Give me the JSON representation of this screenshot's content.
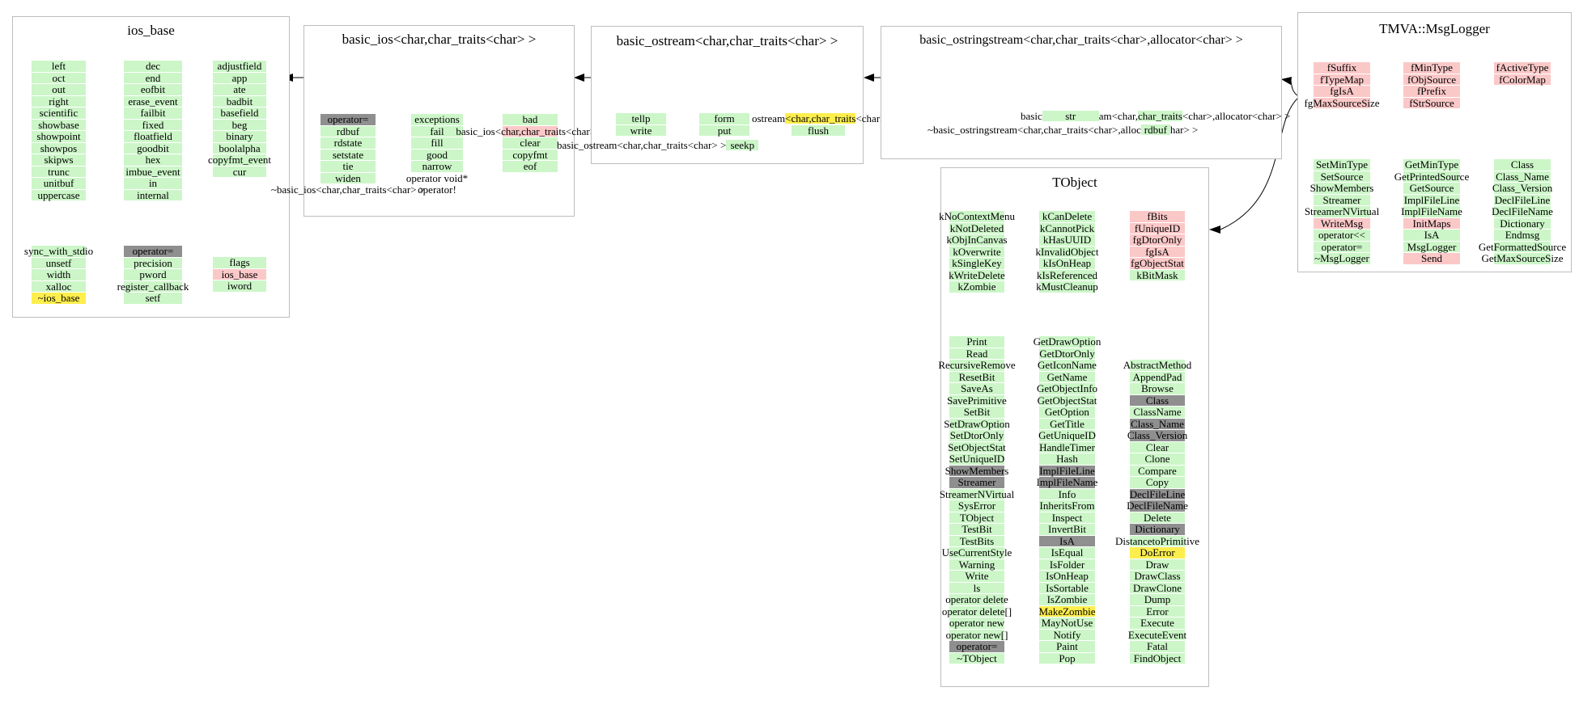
{
  "colors": {
    "green": "#ccf6c8",
    "pink": "#fbc8c8",
    "yellow": "#fdee4d",
    "gray": "#8f8f8f",
    "border": "#bdbdbd",
    "arrow": "#000000",
    "background": "#ffffff"
  },
  "classes": [
    {
      "title": "ios_base",
      "columns": [
        [
          [
            "left",
            "g"
          ],
          [
            "oct",
            "g"
          ],
          [
            "out",
            "g"
          ],
          [
            "right",
            "g"
          ],
          [
            "scientific",
            "g"
          ],
          [
            "showbase",
            "g"
          ],
          [
            "showpoint",
            "g"
          ],
          [
            "showpos",
            "g"
          ],
          [
            "skipws",
            "g"
          ],
          [
            "trunc",
            "g"
          ],
          [
            "unitbuf",
            "g"
          ],
          [
            "uppercase",
            "g"
          ]
        ],
        [
          [
            "dec",
            "g"
          ],
          [
            "end",
            "g"
          ],
          [
            "eofbit",
            "g"
          ],
          [
            "erase_event",
            "g"
          ],
          [
            "failbit",
            "g"
          ],
          [
            "fixed",
            "g"
          ],
          [
            "floatfield",
            "g"
          ],
          [
            "goodbit",
            "g"
          ],
          [
            "hex",
            "g"
          ],
          [
            "imbue_event",
            "g"
          ],
          [
            "in",
            "g"
          ],
          [
            "internal",
            "g"
          ]
        ],
        [
          [
            "adjustfield",
            "g"
          ],
          [
            "app",
            "g"
          ],
          [
            "ate",
            "g"
          ],
          [
            "badbit",
            "g"
          ],
          [
            "basefield",
            "g"
          ],
          [
            "beg",
            "g"
          ],
          [
            "binary",
            "g"
          ],
          [
            "boolalpha",
            "g"
          ],
          [
            "copyfmt_event",
            "g"
          ],
          [
            "cur",
            "g"
          ]
        ],
        [
          [
            "sync_with_stdio",
            "g"
          ],
          [
            "unsetf",
            "g"
          ],
          [
            "width",
            "g"
          ],
          [
            "xalloc",
            "g"
          ],
          [
            "~ios_base",
            "y"
          ]
        ],
        [
          [
            "operator=",
            "gr"
          ],
          [
            "precision",
            "g"
          ],
          [
            "pword",
            "g"
          ],
          [
            "register_callback",
            "g"
          ],
          [
            "setf",
            "g"
          ]
        ],
        [
          [
            "flags",
            "g"
          ],
          [
            "ios_base",
            "p"
          ],
          [
            "iword",
            "g"
          ]
        ]
      ],
      "loose": []
    },
    {
      "title": "basic_ios<char,char_traits<char> >",
      "columns": [
        [
          [
            "operator=",
            "gr"
          ],
          [
            "rdbuf",
            "g"
          ],
          [
            "rdstate",
            "g"
          ],
          [
            "setstate",
            "g"
          ],
          [
            "tie",
            "g"
          ],
          [
            "widen",
            "g"
          ],
          [
            "~basic_ios<char,char_traits<char> >",
            "n"
          ]
        ],
        [
          [
            "exceptions",
            "g"
          ],
          [
            "fail",
            "g"
          ],
          [
            "fill",
            "g"
          ],
          [
            "good",
            "g"
          ],
          [
            "narrow",
            "g"
          ],
          [
            "operator void*",
            "n"
          ],
          [
            "operator!",
            "n"
          ]
        ],
        [
          [
            "bad",
            "g"
          ],
          [
            "basic_ios<char,char_traits<char> >",
            "p"
          ],
          [
            "clear",
            "g"
          ],
          [
            "copyfmt",
            "g"
          ],
          [
            "eof",
            "g"
          ]
        ]
      ],
      "loose": []
    },
    {
      "title": "basic_ostream<char,char_traits<char> >",
      "columns": [
        [
          [
            "tellp",
            "g"
          ],
          [
            "write",
            "g"
          ]
        ],
        [
          [
            "form",
            "g"
          ],
          [
            "put",
            "g"
          ]
        ]
      ],
      "loose": [
        {
          "parts": [
            [
              "ostream"
            ],
            [
              "<char,char_traits",
              "y"
            ],
            [
              "<char> >"
            ]
          ]
        },
        {
          "parts": [
            [
              "flush",
              "g",
              66
            ]
          ]
        },
        {
          "parts": [
            [
              "basic_ostream<char,char_traits<char> >"
            ],
            [
              "seekp",
              "g",
              40
            ]
          ]
        }
      ]
    },
    {
      "title": "basic_ostringstream<char,char_traits<char>,allocator<char> >",
      "columns": [],
      "loose": [
        {
          "parts": [
            [
              "basic"
            ],
            [
              "str",
              "g",
              70
            ],
            [
              "am<char,"
            ],
            [
              "char_traits",
              "g"
            ],
            [
              "<char>,allocator<char> >"
            ]
          ]
        },
        {
          "parts": [
            [
              "~basic_ostringstream<char,char_traits<char>,alloc"
            ],
            [
              "rdbuf",
              "g",
              36
            ],
            [
              "har> >"
            ]
          ]
        }
      ]
    },
    {
      "title": "TMVA::MsgLogger",
      "columns": [
        [
          [
            "fSuffix",
            "p"
          ],
          [
            "fTypeMap",
            "p"
          ],
          [
            "fgIsA",
            "p"
          ],
          [
            "fgMaxSourceSize",
            "p"
          ]
        ],
        [
          [
            "fMinType",
            "p"
          ],
          [
            "fObjSource",
            "p"
          ],
          [
            "fPrefix",
            "p"
          ],
          [
            "fStrSource",
            "p"
          ]
        ],
        [
          [
            "fActiveType",
            "p"
          ],
          [
            "fColorMap",
            "p"
          ]
        ],
        [
          [
            "SetMinType",
            "g"
          ],
          [
            "SetSource",
            "g"
          ],
          [
            "ShowMembers",
            "g"
          ],
          [
            "Streamer",
            "g"
          ],
          [
            "StreamerNVirtual",
            "g"
          ],
          [
            "WriteMsg",
            "p"
          ],
          [
            "operator<<",
            "g"
          ],
          [
            "operator=",
            "g"
          ],
          [
            "~MsgLogger",
            "g"
          ]
        ],
        [
          [
            "GetMinType",
            "g"
          ],
          [
            "GetPrintedSource",
            "g"
          ],
          [
            "GetSource",
            "g"
          ],
          [
            "ImplFileLine",
            "g"
          ],
          [
            "ImplFileName",
            "g"
          ],
          [
            "InitMaps",
            "p"
          ],
          [
            "IsA",
            "g"
          ],
          [
            "MsgLogger",
            "g"
          ],
          [
            "Send",
            "p"
          ]
        ],
        [
          [
            "Class",
            "g"
          ],
          [
            "Class_Name",
            "g"
          ],
          [
            "Class_Version",
            "g"
          ],
          [
            "DeclFileLine",
            "g"
          ],
          [
            "DeclFileName",
            "g"
          ],
          [
            "Dictionary",
            "g"
          ],
          [
            "Endmsg",
            "g"
          ],
          [
            "GetFormattedSource",
            "g"
          ],
          [
            "GetMaxSourceSize",
            "g"
          ]
        ]
      ],
      "loose": []
    },
    {
      "title": "TObject",
      "columns": [
        [
          [
            "kNoContextMenu",
            "g"
          ],
          [
            "kNotDeleted",
            "g"
          ],
          [
            "kObjInCanvas",
            "g"
          ],
          [
            "kOverwrite",
            "g"
          ],
          [
            "kSingleKey",
            "g"
          ],
          [
            "kWriteDelete",
            "g"
          ],
          [
            "kZombie",
            "g"
          ]
        ],
        [
          [
            "kCanDelete",
            "g"
          ],
          [
            "kCannotPick",
            "g"
          ],
          [
            "kHasUUID",
            "g"
          ],
          [
            "kInvalidObject",
            "g"
          ],
          [
            "kIsOnHeap",
            "g"
          ],
          [
            "kIsReferenced",
            "g"
          ],
          [
            "kMustCleanup",
            "g"
          ]
        ],
        [
          [
            "fBits",
            "p"
          ],
          [
            "fUniqueID",
            "p"
          ],
          [
            "fgDtorOnly",
            "p"
          ],
          [
            "fgIsA",
            "p"
          ],
          [
            "fgObjectStat",
            "p"
          ],
          [
            "kBitMask",
            "g"
          ]
        ],
        [
          [
            "Print",
            "g"
          ],
          [
            "Read",
            "g"
          ],
          [
            "RecursiveRemove",
            "g"
          ],
          [
            "ResetBit",
            "g"
          ],
          [
            "SaveAs",
            "g"
          ],
          [
            "SavePrimitive",
            "g"
          ],
          [
            "SetBit",
            "g"
          ],
          [
            "SetDrawOption",
            "g"
          ],
          [
            "SetDtorOnly",
            "g"
          ],
          [
            "SetObjectStat",
            "g"
          ],
          [
            "SetUniqueID",
            "g"
          ],
          [
            "ShowMembers",
            "gr"
          ],
          [
            "Streamer",
            "gr"
          ],
          [
            "StreamerNVirtual",
            "g"
          ],
          [
            "SysError",
            "g"
          ],
          [
            "TObject",
            "g"
          ],
          [
            "TestBit",
            "g"
          ],
          [
            "TestBits",
            "g"
          ],
          [
            "UseCurrentStyle",
            "g"
          ],
          [
            "Warning",
            "g"
          ],
          [
            "Write",
            "g"
          ],
          [
            "ls",
            "g"
          ],
          [
            "operator delete",
            "g"
          ],
          [
            "operator delete[]",
            "g"
          ],
          [
            "operator new",
            "g"
          ],
          [
            "operator new[]",
            "g"
          ],
          [
            "operator=",
            "gr"
          ],
          [
            "~TObject",
            "g"
          ]
        ],
        [
          [
            "GetDrawOption",
            "g"
          ],
          [
            "GetDtorOnly",
            "g"
          ],
          [
            "GetIconName",
            "g"
          ],
          [
            "GetName",
            "g"
          ],
          [
            "GetObjectInfo",
            "g"
          ],
          [
            "GetObjectStat",
            "g"
          ],
          [
            "GetOption",
            "g"
          ],
          [
            "GetTitle",
            "g"
          ],
          [
            "GetUniqueID",
            "g"
          ],
          [
            "HandleTimer",
            "g"
          ],
          [
            "Hash",
            "g"
          ],
          [
            "ImplFileLine",
            "gr"
          ],
          [
            "ImplFileName",
            "gr"
          ],
          [
            "Info",
            "g"
          ],
          [
            "InheritsFrom",
            "g"
          ],
          [
            "Inspect",
            "g"
          ],
          [
            "InvertBit",
            "g"
          ],
          [
            "IsA",
            "gr"
          ],
          [
            "IsEqual",
            "g"
          ],
          [
            "IsFolder",
            "g"
          ],
          [
            "IsOnHeap",
            "g"
          ],
          [
            "IsSortable",
            "g"
          ],
          [
            "IsZombie",
            "g"
          ],
          [
            "MakeZombie",
            "y"
          ],
          [
            "MayNotUse",
            "g"
          ],
          [
            "Notify",
            "g"
          ],
          [
            "Paint",
            "g"
          ],
          [
            "Pop",
            "g"
          ]
        ],
        [
          [
            "AbstractMethod",
            "g"
          ],
          [
            "AppendPad",
            "g"
          ],
          [
            "Browse",
            "g"
          ],
          [
            "Class",
            "gr"
          ],
          [
            "ClassName",
            "g"
          ],
          [
            "Class_Name",
            "gr"
          ],
          [
            "Class_Version",
            "gr"
          ],
          [
            "Clear",
            "g"
          ],
          [
            "Clone",
            "g"
          ],
          [
            "Compare",
            "g"
          ],
          [
            "Copy",
            "g"
          ],
          [
            "DeclFileLine",
            "gr"
          ],
          [
            "DeclFileName",
            "gr"
          ],
          [
            "Delete",
            "g"
          ],
          [
            "Dictionary",
            "gr"
          ],
          [
            "DistancetoPrimitive",
            "g"
          ],
          [
            "DoError",
            "y"
          ],
          [
            "Draw",
            "g"
          ],
          [
            "DrawClass",
            "g"
          ],
          [
            "DrawClone",
            "g"
          ],
          [
            "Dump",
            "g"
          ],
          [
            "Error",
            "g"
          ],
          [
            "Execute",
            "g"
          ],
          [
            "ExecuteEvent",
            "g"
          ],
          [
            "Fatal",
            "g"
          ],
          [
            "FindObject",
            "g"
          ]
        ]
      ],
      "loose": []
    }
  ],
  "inheritance_edges": [
    {
      "from": "basic_ios<char,char_traits<char> >",
      "to": "ios_base"
    },
    {
      "from": "basic_ostream<char,char_traits<char> >",
      "to": "basic_ios<char,char_traits<char> >"
    },
    {
      "from": "basic_ostringstream<char,char_traits<char>,allocator<char> >",
      "to": "basic_ostream<char,char_traits<char> >"
    },
    {
      "from": "TMVA::MsgLogger",
      "to": "basic_ostringstream<char,char_traits<char>,allocator<char> >"
    },
    {
      "from": "TMVA::MsgLogger",
      "to": "TObject"
    }
  ]
}
